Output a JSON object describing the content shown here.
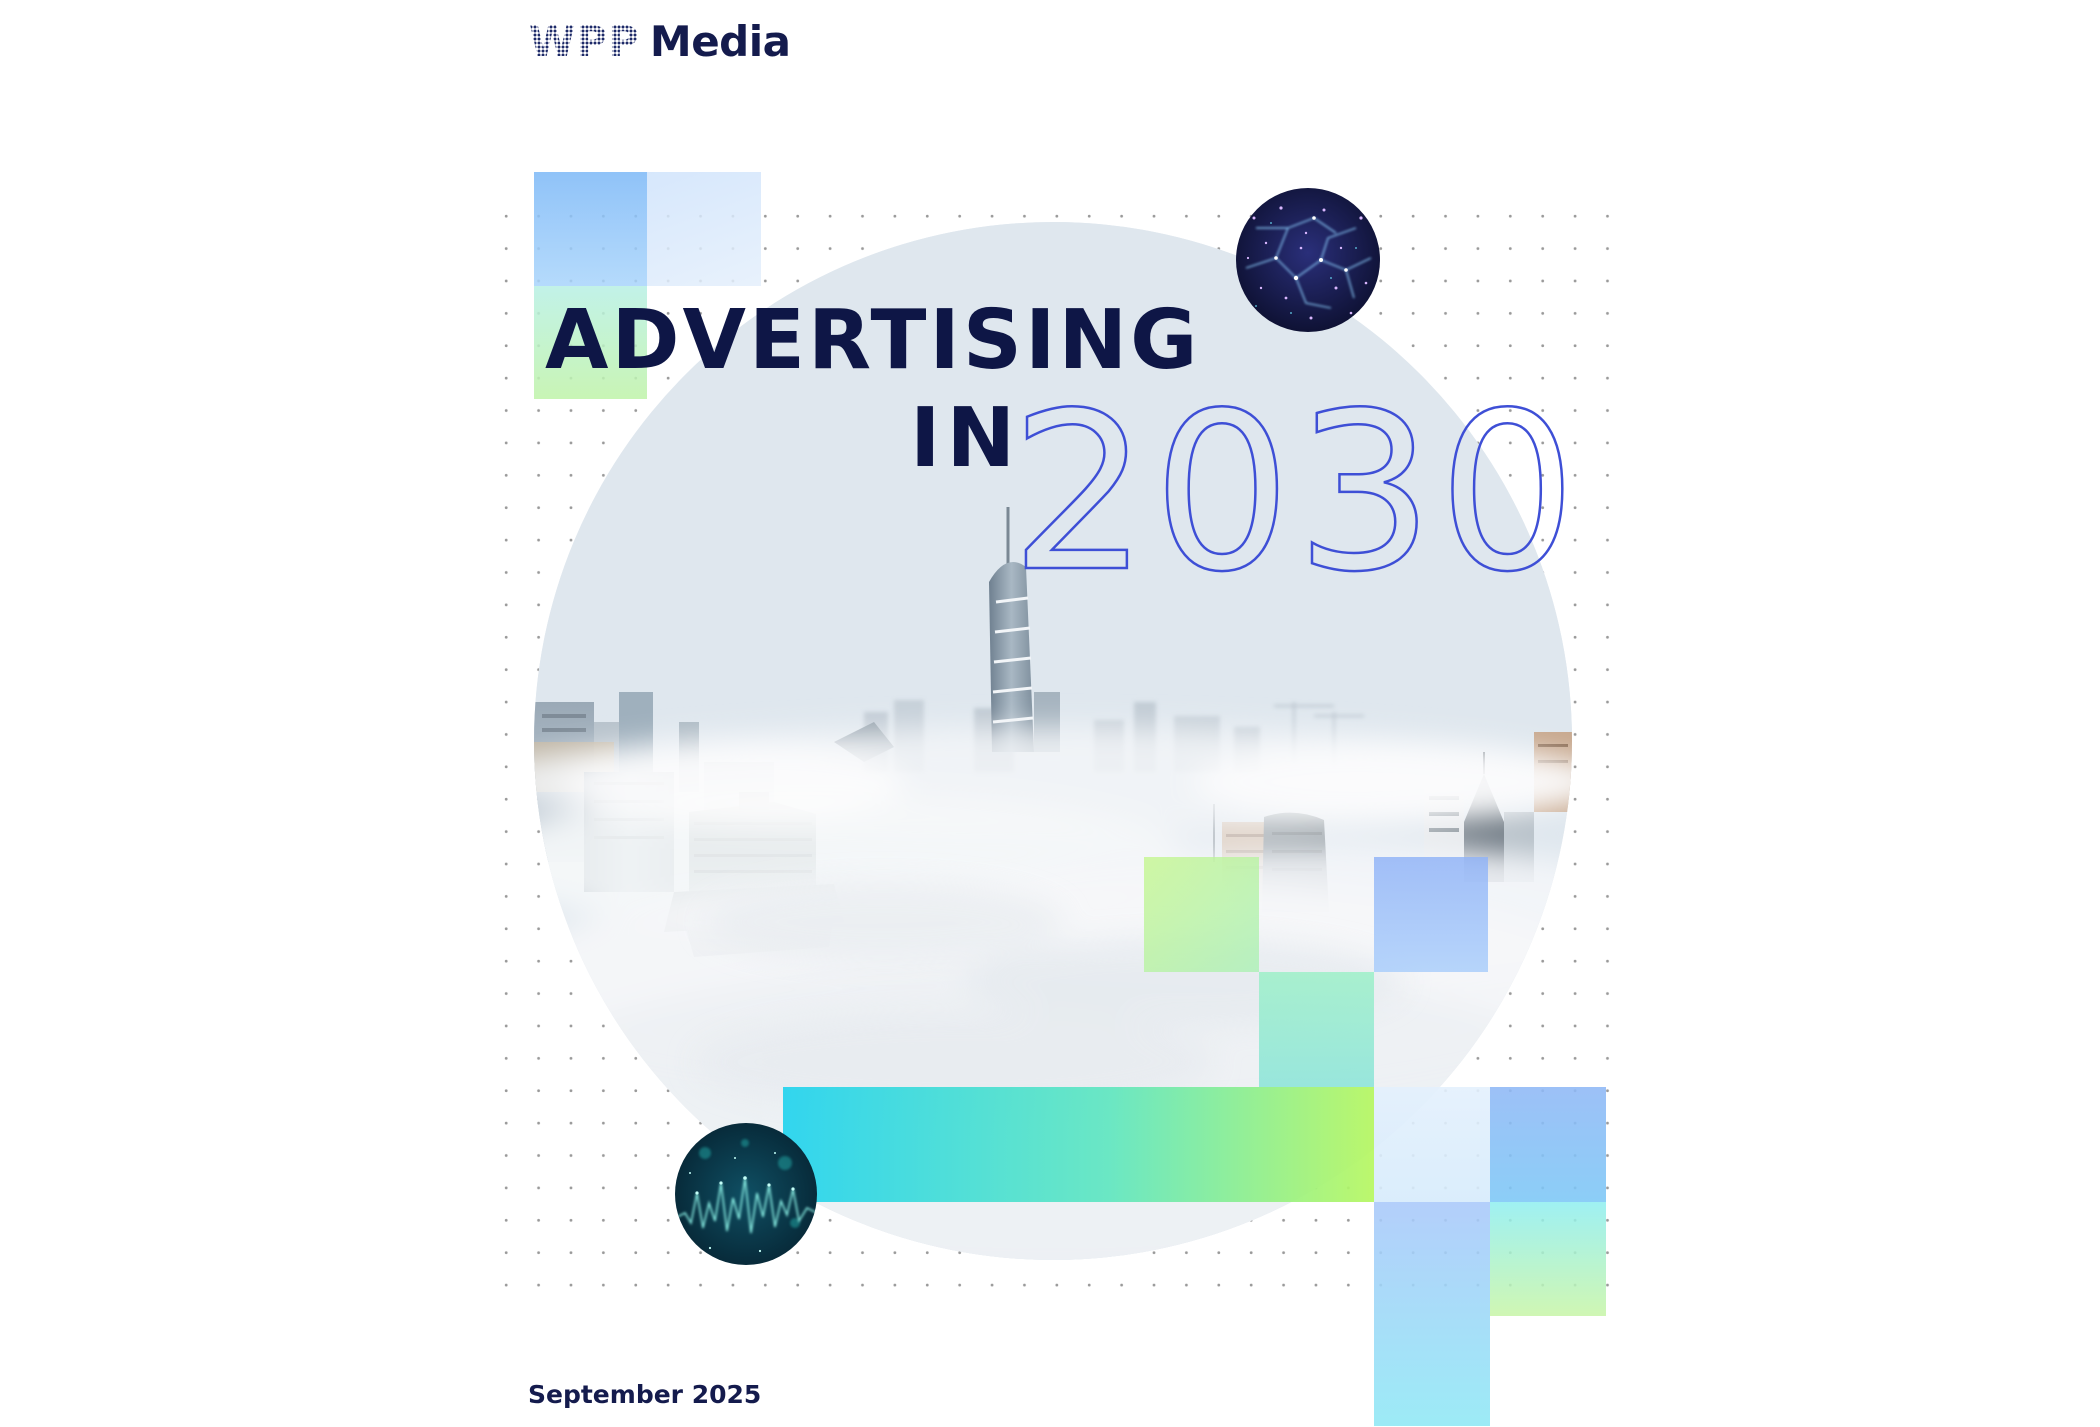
{
  "logo": {
    "brand": "WPP",
    "product": "Media"
  },
  "title": {
    "line1": "ADVERTISING",
    "line2": "IN",
    "year": "2030"
  },
  "date": "September 2025",
  "colors": {
    "navy": "#0e1646",
    "outline_blue": "#3e4fd6",
    "cyan": "#22d3ee",
    "lime": "#a3f764",
    "sky": "#93c5fd"
  },
  "imagery": {
    "main_circle": "city-skyline-in-fog",
    "top_circle": "neural-network-particles",
    "bottom_circle": "digital-waveform-particles"
  }
}
